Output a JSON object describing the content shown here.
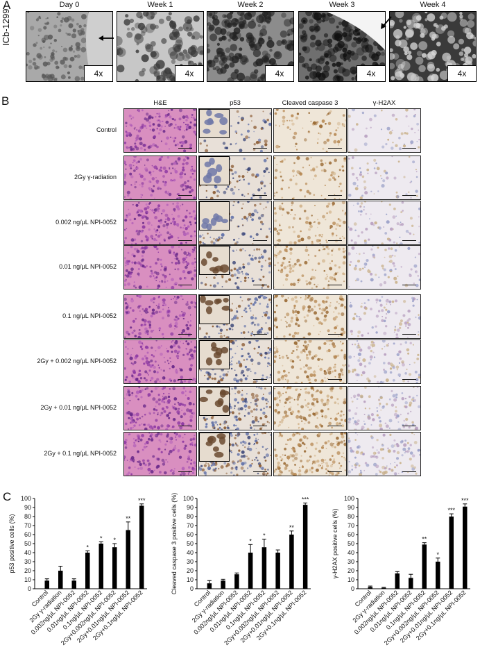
{
  "panel_a": {
    "letter": "A",
    "cell_line": "ICb-1299",
    "timepoints": [
      "Day 0",
      "Week 1",
      "Week 2",
      "Week 3",
      "Week 4"
    ],
    "magnification": "4x"
  },
  "panel_b": {
    "letter": "B",
    "stains": [
      "H&E",
      "p53",
      "Cleaved caspase 3",
      "γ-H2AX"
    ],
    "conditions": [
      "Control",
      "2Gy γ-radiation",
      "0.002 ng/μL NPI-0052",
      "0.01 ng/μL NPI-0052",
      "0.1 ng/μL NPI-0052",
      "2Gy + 0.002 ng/μL NPI-0052",
      "2Gy + 0.01 ng/μL NPI-0052",
      "2Gy + 0.1 ng/μL NPI-0052"
    ]
  },
  "panel_c": {
    "letter": "C"
  },
  "chart_data": [
    {
      "type": "bar",
      "ylabel": "p53 positive cells (%)",
      "ylim": [
        0,
        100
      ],
      "yticks": [
        0,
        10,
        20,
        30,
        40,
        50,
        60,
        70,
        80,
        90,
        100
      ],
      "categories": [
        "Control",
        "2Gy γ-radiation",
        "0.002ng/μL NPI-0052",
        "0.01ng/μL NPI-0052",
        "0.1ng/μL NPI-0052",
        "2Gy+0.002ng/μL NPI-0052",
        "2Gy+0.01ng/μL NPI-0052",
        "2Gy+0.1ng/μL NPI-0052"
      ],
      "values": [
        9,
        20,
        9,
        40,
        50,
        46,
        65,
        92
      ],
      "errors": [
        2,
        5,
        2,
        2,
        2,
        4,
        9,
        2
      ],
      "significance": [
        "",
        "",
        "",
        "*",
        "*",
        "*",
        "**",
        "***"
      ]
    },
    {
      "type": "bar",
      "ylabel": "Cleaved caspase 3 positive cells (%)",
      "ylim": [
        0,
        100
      ],
      "yticks": [
        0,
        10,
        20,
        30,
        40,
        50,
        60,
        70,
        80,
        90,
        100
      ],
      "categories": [
        "Control",
        "2Gy γ-radiation",
        "0.002ng/μL NPI-0052",
        "0.01ng/μL NPI-0052",
        "0.1ng/μL NPI-0052",
        "2Gy+0.002ng/μL NPI-0052",
        "2Gy+0.01ng/μL NPI-0052",
        "2Gy+0.1ng/μL NPI-0052"
      ],
      "values": [
        6,
        9,
        16,
        40,
        46,
        40,
        60,
        93
      ],
      "errors": [
        3,
        1.5,
        1.5,
        9,
        9,
        3,
        4,
        2
      ],
      "significance": [
        "",
        "",
        "",
        "*",
        "*",
        "",
        "**",
        "***"
      ]
    },
    {
      "type": "bar",
      "ylabel": "γ-H2AX positive cells (%)",
      "ylim": [
        0,
        100
      ],
      "yticks": [
        0,
        10,
        20,
        30,
        40,
        50,
        60,
        70,
        80,
        90,
        100
      ],
      "categories": [
        "Control",
        "2Gy γ-radiation",
        "0.002ng/μL NPI-0052",
        "0.01ng/μL NPI-0052",
        "0.1ng/μL NPI-0052",
        "2Gy+0.002ng/μL NPI-0052",
        "2Gy+0.01ng/μL NPI-0052",
        "2Gy+0.1ng/μL NPI-0052"
      ],
      "values": [
        2,
        1,
        17,
        12,
        49,
        30,
        80,
        91
      ],
      "errors": [
        1,
        0.5,
        2,
        4,
        2,
        4,
        3,
        3
      ],
      "significance": [
        "",
        "",
        "",
        "",
        "**",
        "*",
        "***",
        "***"
      ]
    }
  ]
}
